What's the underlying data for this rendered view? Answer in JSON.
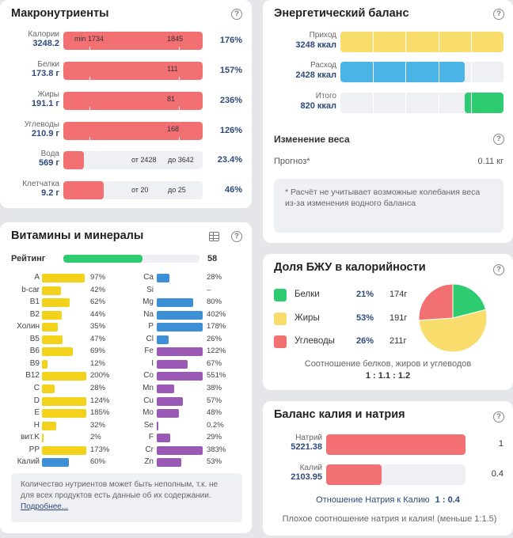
{
  "macro": {
    "title": "Макронутриенты",
    "help": "?",
    "rows": [
      {
        "name": "Калории",
        "value": "3248.2",
        "fill": 1.0,
        "min_label": "min 1734",
        "mid_label": "1845",
        "pct": "176%"
      },
      {
        "name": "Белки",
        "value": "173.8 г",
        "fill": 1.0,
        "min_label": "",
        "mid_label": "111",
        "pct": "157%"
      },
      {
        "name": "Жиры",
        "value": "191.1 г",
        "fill": 1.0,
        "min_label": "",
        "mid_label": "81",
        "pct": "236%"
      },
      {
        "name": "Углеводы",
        "value": "210.9 г",
        "fill": 1.0,
        "min_label": "",
        "mid_label": "168",
        "pct": "126%"
      },
      {
        "name": "Вода",
        "value": "569 г",
        "fill": 0.15,
        "min_label": "от 2428",
        "mid_label": "до 3642",
        "pct": "23.4%"
      },
      {
        "name": "Клетчатка",
        "value": "9.2 г",
        "fill": 0.29,
        "min_label": "от 20",
        "mid_label": "до 25",
        "pct": "46%"
      }
    ]
  },
  "energy": {
    "title": "Энергетический баланс",
    "help": "?",
    "rows": [
      {
        "name": "Приход",
        "value": "3248 ккал",
        "fill": 1.0,
        "color": "#f8dd6d"
      },
      {
        "name": "Расход",
        "value": "2428 ккал",
        "fill": 0.76,
        "color": "#4bb4e6"
      },
      {
        "name": "Итого",
        "value": "820 ккал",
        "fill": 0.24,
        "color": "#2ecc71"
      }
    ],
    "weight_title": "Изменение веса",
    "forecast_label": "Прогноз*",
    "forecast_value": "0.11 кг",
    "note": "* Расчёт не учитывает возможные колебания веса из-за изменения водного баланса"
  },
  "vitamins": {
    "title": "Витамины и минералы",
    "help": "?",
    "rating_label": "Рейтинг",
    "rating_value": "58",
    "rating_fill": 0.58,
    "left": [
      {
        "name": "A",
        "pct": "97%",
        "fill": 0.97,
        "color": "#f2d21b"
      },
      {
        "name": "b-car",
        "pct": "42%",
        "fill": 0.42,
        "color": "#f2d21b"
      },
      {
        "name": "B1",
        "pct": "62%",
        "fill": 0.62,
        "color": "#f2d21b"
      },
      {
        "name": "B2",
        "pct": "44%",
        "fill": 0.44,
        "color": "#f2d21b"
      },
      {
        "name": "Холин",
        "pct": "35%",
        "fill": 0.35,
        "color": "#f2d21b"
      },
      {
        "name": "B5",
        "pct": "47%",
        "fill": 0.47,
        "color": "#f2d21b"
      },
      {
        "name": "B6",
        "pct": "69%",
        "fill": 0.69,
        "color": "#f2d21b"
      },
      {
        "name": "B9",
        "pct": "12%",
        "fill": 0.12,
        "color": "#f2d21b"
      },
      {
        "name": "B12",
        "pct": "200%",
        "fill": 1.0,
        "color": "#f2d21b"
      },
      {
        "name": "C",
        "pct": "28%",
        "fill": 0.28,
        "color": "#f2d21b"
      },
      {
        "name": "D",
        "pct": "124%",
        "fill": 1.0,
        "color": "#f2d21b"
      },
      {
        "name": "E",
        "pct": "185%",
        "fill": 1.0,
        "color": "#f2d21b"
      },
      {
        "name": "H",
        "pct": "32%",
        "fill": 0.32,
        "color": "#f2d21b"
      },
      {
        "name": "вит.K",
        "pct": "2%",
        "fill": 0.02,
        "color": "#f2d21b"
      },
      {
        "name": "PP",
        "pct": "173%",
        "fill": 1.0,
        "color": "#f2d21b"
      },
      {
        "name": "Калий",
        "pct": "60%",
        "fill": 0.6,
        "color": "#3d8fd6"
      }
    ],
    "right": [
      {
        "name": "Ca",
        "pct": "28%",
        "fill": 0.28,
        "color": "#3d8fd6"
      },
      {
        "name": "Si",
        "pct": "–",
        "fill": 0,
        "color": "#3d8fd6"
      },
      {
        "name": "Mg",
        "pct": "80%",
        "fill": 0.8,
        "color": "#3d8fd6"
      },
      {
        "name": "Na",
        "pct": "402%",
        "fill": 1.0,
        "color": "#3d8fd6"
      },
      {
        "name": "P",
        "pct": "178%",
        "fill": 1.0,
        "color": "#3d8fd6"
      },
      {
        "name": "Cl",
        "pct": "26%",
        "fill": 0.26,
        "color": "#3d8fd6"
      },
      {
        "name": "Fe",
        "pct": "122%",
        "fill": 1.0,
        "color": "#9b59b6"
      },
      {
        "name": "I",
        "pct": "67%",
        "fill": 0.67,
        "color": "#9b59b6"
      },
      {
        "name": "Co",
        "pct": "551%",
        "fill": 1.0,
        "color": "#9b59b6"
      },
      {
        "name": "Mn",
        "pct": "38%",
        "fill": 0.38,
        "color": "#9b59b6"
      },
      {
        "name": "Cu",
        "pct": "57%",
        "fill": 0.57,
        "color": "#9b59b6"
      },
      {
        "name": "Mo",
        "pct": "48%",
        "fill": 0.48,
        "color": "#9b59b6"
      },
      {
        "name": "Se",
        "pct": "0.2%",
        "fill": 0.01,
        "color": "#9b59b6"
      },
      {
        "name": "F",
        "pct": "29%",
        "fill": 0.29,
        "color": "#9b59b6"
      },
      {
        "name": "Cr",
        "pct": "383%",
        "fill": 1.0,
        "color": "#9b59b6"
      },
      {
        "name": "Zn",
        "pct": "53%",
        "fill": 0.53,
        "color": "#9b59b6"
      }
    ],
    "note_text": "Количество нутриентов может быть неполным, т.к. не для всех продуктов есть данные об их содержании.",
    "note_link": "Подробнее..."
  },
  "bju": {
    "title": "Доля БЖУ в калорийности",
    "help": "?",
    "rows": [
      {
        "name": "Белки",
        "pct": "21%",
        "grams": "174г",
        "color": "#2ecc71"
      },
      {
        "name": "Жиры",
        "pct": "53%",
        "grams": "191г",
        "color": "#f8dd6d"
      },
      {
        "name": "Углеводы",
        "pct": "26%",
        "grams": "211г",
        "color": "#f26f72"
      }
    ],
    "ratio_label": "Соотношение белков, жиров и углеводов",
    "ratio_value": "1 : 1.1 : 1.2"
  },
  "chart_data": {
    "type": "pie",
    "title": "",
    "categories": [
      "Белки",
      "Жиры",
      "Углеводы"
    ],
    "values": [
      21,
      53,
      26
    ],
    "colors": [
      "#2ecc71",
      "#f8dd6d",
      "#f26f72"
    ]
  },
  "kna": {
    "title": "Баланс калия и натрия",
    "help": "?",
    "rows": [
      {
        "name": "Натрий",
        "value": "5221.38",
        "fill": 1.0,
        "ratio": "1"
      },
      {
        "name": "Калий",
        "value": "2103.95",
        "fill": 0.4,
        "ratio": "0.4"
      }
    ],
    "ratio_label": "Отношение Натрия к Калию",
    "ratio_value": "1 : 0.4",
    "warning": "Плохое соотношение натрия и калия! (меньше 1:1.5)"
  }
}
